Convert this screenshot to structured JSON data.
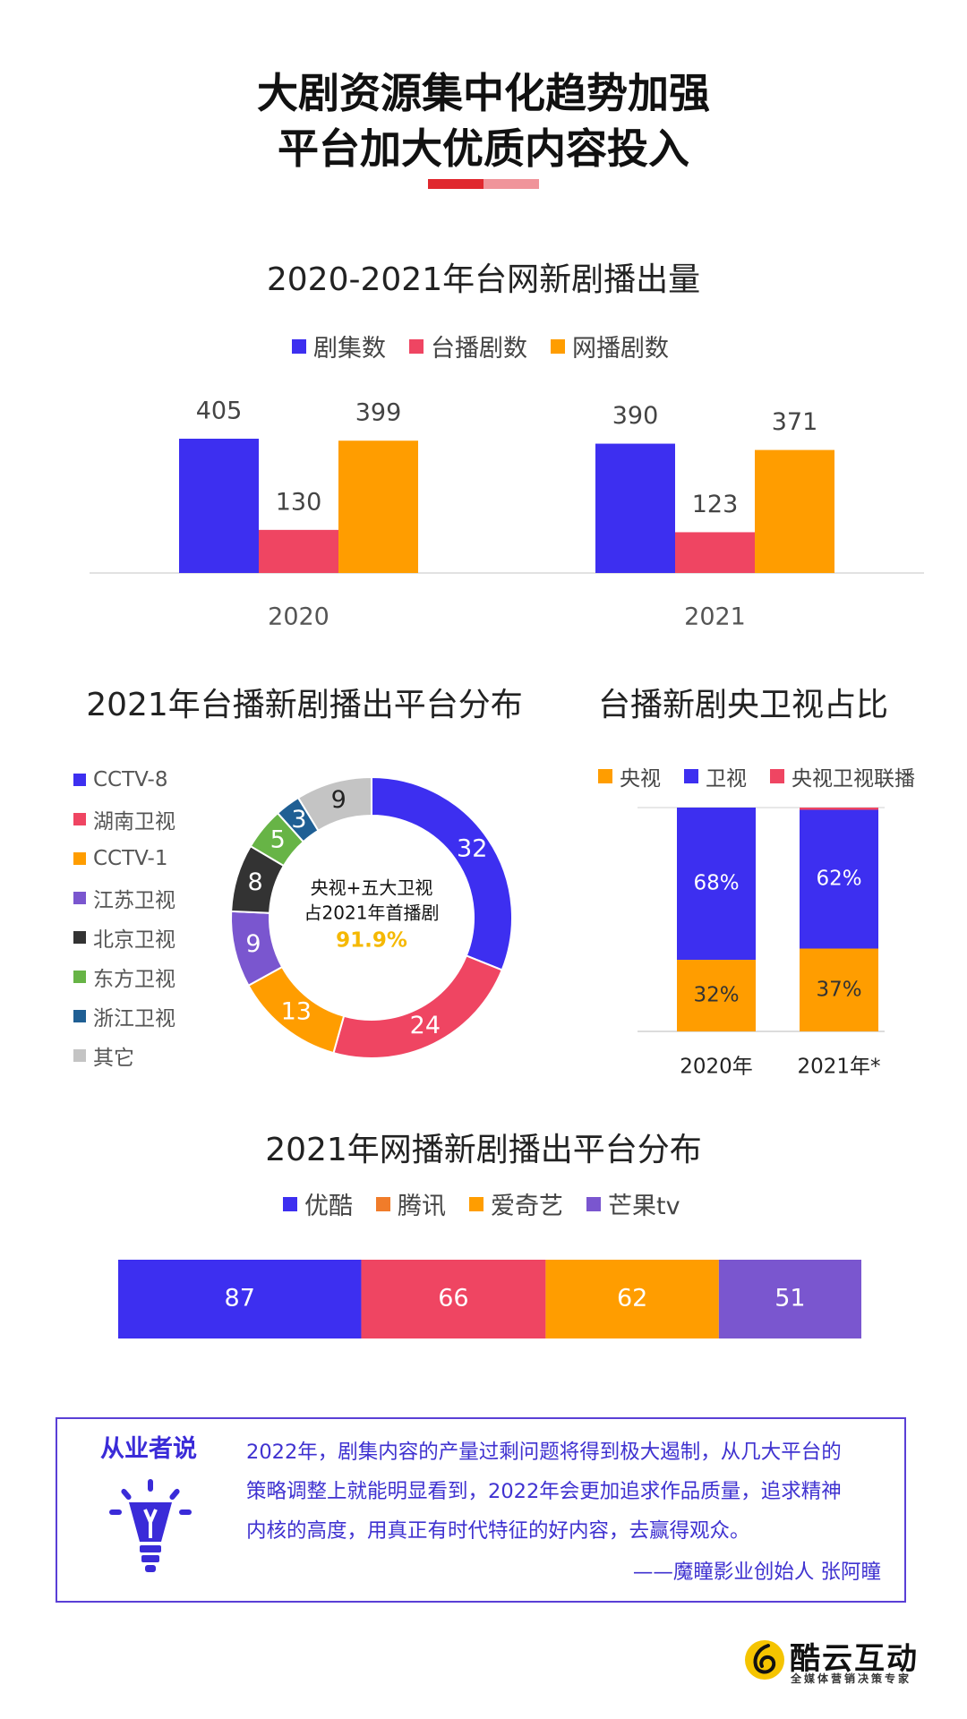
{
  "header": {
    "title_line1": "大剧资源集中化趋势加强",
    "title_line2": "平台加大优质内容投入"
  },
  "colors": {
    "blue": "#3d2ff0",
    "red": "#ef4562",
    "orange": "#ff9d00",
    "purple": "#7a56cf",
    "dark": "#333333",
    "green": "#67b446",
    "teal": "#1f5f94",
    "gray": "#c4c4c4"
  },
  "chart_data": [
    {
      "type": "bar",
      "title": "2020-2021年台网新剧播出量",
      "categories": [
        "2020",
        "2021"
      ],
      "series": [
        {
          "name": "剧集数",
          "values": [
            405,
            390
          ]
        },
        {
          "name": "台播剧数",
          "values": [
            130,
            123
          ]
        },
        {
          "name": "网播剧数",
          "values": [
            399,
            371
          ]
        }
      ],
      "legend": "top",
      "grid": false
    },
    {
      "type": "pie",
      "title": "2021年台播新剧播出平台分布",
      "labels": [
        "CCTV-8",
        "湖南卫视",
        "CCTV-1",
        "江苏卫视",
        "北京卫视",
        "东方卫视",
        "浙江卫视",
        "其它"
      ],
      "values": [
        32,
        24,
        13,
        9,
        8,
        5,
        3,
        9
      ],
      "center_text": [
        "央视+五大卫视",
        "占2021年首播剧"
      ],
      "center_value": "91.9%",
      "legend": "left"
    },
    {
      "type": "bar",
      "stacked": true,
      "title": "台播新剧央卫视占比",
      "categories": [
        "2020年",
        "2021年*"
      ],
      "series": [
        {
          "name": "央视",
          "values": [
            32,
            37
          ]
        },
        {
          "name": "卫视",
          "values": [
            68,
            62
          ]
        },
        {
          "name": "央视卫视联播",
          "values": [
            0,
            1
          ]
        }
      ],
      "labels": [
        [
          "32%",
          "68%"
        ],
        [
          "37%",
          "62%"
        ]
      ],
      "ylim": [
        0,
        100
      ],
      "legend": "top"
    },
    {
      "type": "bar",
      "stacked": true,
      "orientation": "horizontal",
      "title": "2021年网播新剧播出平台分布",
      "series": [
        {
          "name": "优酷",
          "values": [
            87
          ]
        },
        {
          "name": "腾讯",
          "values": [
            66
          ]
        },
        {
          "name": "爱奇艺",
          "values": [
            62
          ]
        },
        {
          "name": "芒果tv",
          "values": [
            51
          ]
        }
      ],
      "legend": "top"
    }
  ],
  "quote": {
    "heading": "从业者说",
    "lines": [
      "2022年，剧集内容的产量过剩问题将得到极大遏制，从几大平台的",
      "策略调整上就能明显看到，2022年会更加追求作品质量，追求精神",
      "内核的高度，用真正有时代特征的好内容，去赢得观众。"
    ],
    "author": "——魔瞳影业创始人 张阿瞳",
    "icon": "lightbulb-icon"
  },
  "logo": {
    "name": "酷云互动",
    "tagline": "全媒体营销决策专家",
    "icon": "logo-mark-icon"
  }
}
